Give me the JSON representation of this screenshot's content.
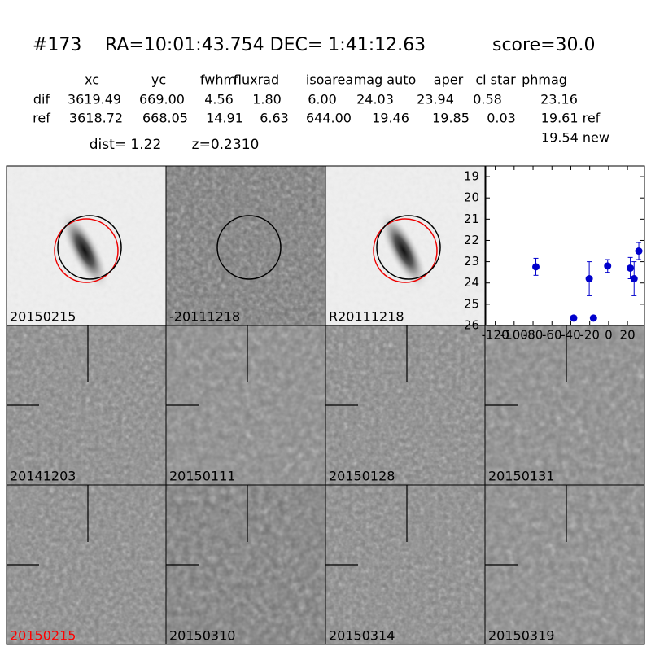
{
  "header": {
    "id": "#173",
    "coords": "RA=10:01:43.754 DEC= 1:41:12.63",
    "score": "score=30.0"
  },
  "table": {
    "columns": [
      "xc",
      "yc",
      "fwhm",
      "fluxrad",
      "isoarea",
      "mag auto",
      "aper",
      "cl star",
      "phmag"
    ],
    "rows": [
      [
        "dif",
        "3619.49",
        "669.00",
        "4.56",
        "1.80",
        "6.00",
        "24.03",
        "23.94",
        "0.58",
        "23.16"
      ],
      [
        "ref",
        "3618.72",
        "668.05",
        "14.91",
        "6.63",
        "644.00",
        "19.46",
        "19.85",
        "0.03",
        "19.61 ref"
      ]
    ],
    "extra": "19.54 new"
  },
  "info": {
    "dist": "dist=  1.22",
    "z": "z=0.2310"
  },
  "panels": [
    {
      "label": "20150215",
      "color": "#000000"
    },
    {
      "label": "-20111218",
      "color": "#000000"
    },
    {
      "label": "R20111218",
      "color": "#000000"
    },
    {
      "label": "20141203",
      "color": "#000000"
    },
    {
      "label": "20150111",
      "color": "#000000"
    },
    {
      "label": "20150128",
      "color": "#000000"
    },
    {
      "label": "20150131",
      "color": "#000000"
    },
    {
      "label": "20150215",
      "color": "#ff0000"
    },
    {
      "label": "20150310",
      "color": "#000000"
    },
    {
      "label": "20150314",
      "color": "#000000"
    },
    {
      "label": "20150319",
      "color": "#000000"
    }
  ],
  "chart_data": {
    "type": "scatter",
    "color": "#0000cc",
    "x": [
      -77,
      -37,
      -20.5,
      -16,
      -1,
      23,
      27,
      32
    ],
    "values": [
      23.24,
      25.65,
      23.8,
      25.65,
      23.2,
      23.3,
      23.8,
      22.5
    ],
    "errors": [
      0.4,
      0.05,
      0.8,
      0.05,
      0.3,
      0.5,
      0.8,
      0.4
    ],
    "xlim": [
      -130,
      38
    ],
    "ylim": [
      26,
      18.5
    ],
    "xticks": [
      -120,
      -100,
      -80,
      -60,
      -40,
      -20,
      0,
      20
    ],
    "yticks": [
      19,
      20,
      21,
      22,
      23,
      24,
      25,
      26
    ]
  }
}
